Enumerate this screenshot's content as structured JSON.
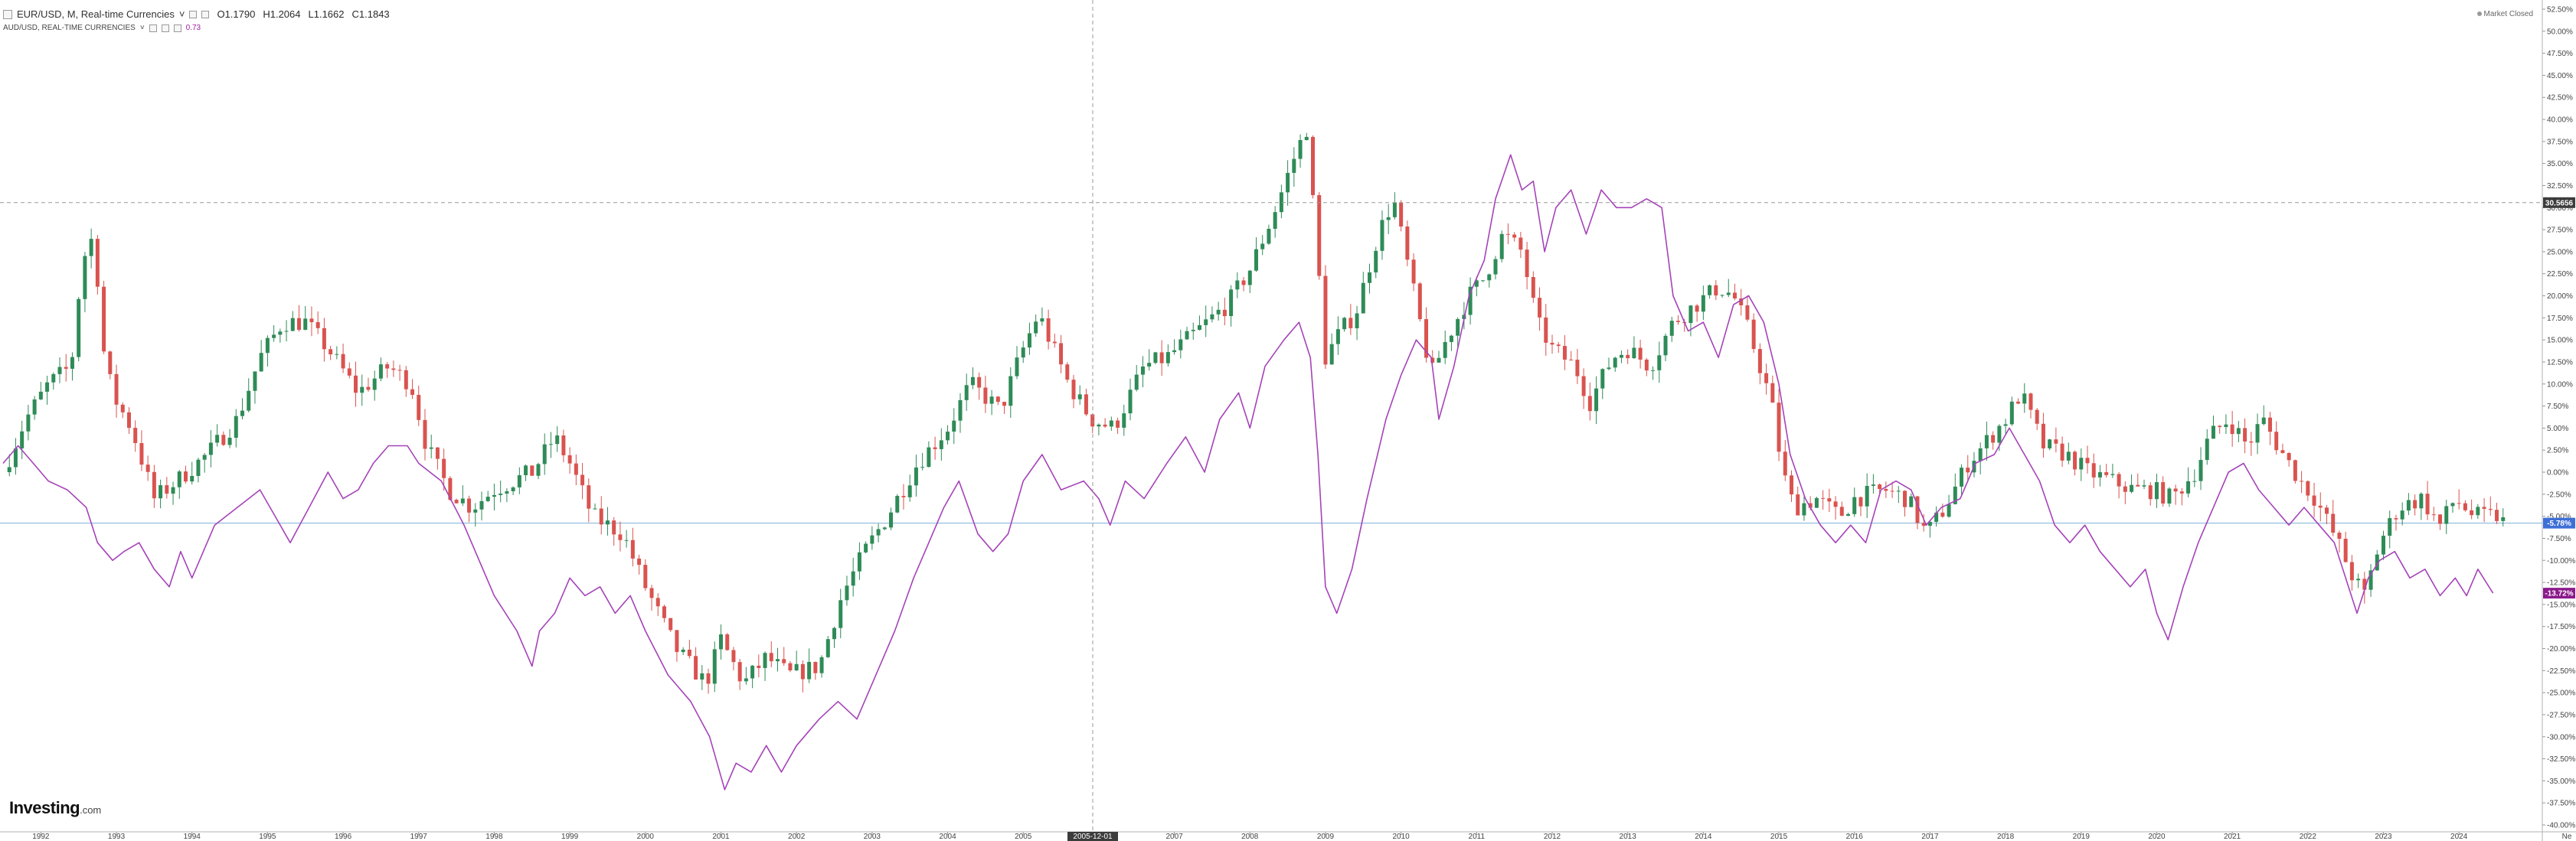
{
  "legend": {
    "main_title": "EUR/USD, M, Real-time Currencies",
    "open": "O1.1790",
    "high": "H1.2064",
    "low": "L1.1662",
    "close": "C1.1843",
    "sub_title": "AUD/USD, REAL-TIME CURRENCIES",
    "sub_value": "0.73"
  },
  "market_status": "Market Closed",
  "logo": {
    "main": "Investing",
    "suffix": ".com"
  },
  "colors": {
    "up": "#26a69a",
    "up_body": "#2e8b57",
    "down": "#d9534f",
    "line": "#a543b8",
    "grid": "#cccccc",
    "crosshair_label": "#3c3c3c",
    "eur_label": "#3d6fd6",
    "aud_label": "#8b1a8b"
  },
  "chart_data": {
    "type": "line",
    "y_axis": {
      "unit": "%",
      "range": [
        -40,
        52.5
      ],
      "tick_labels": [
        "52.50%",
        "50.00%",
        "47.50%",
        "45.00%",
        "42.50%",
        "40.00%",
        "37.50%",
        "35.00%",
        "32.50%",
        "30.00%",
        "27.50%",
        "25.00%",
        "22.50%",
        "20.00%",
        "17.50%",
        "15.00%",
        "12.50%",
        "10.00%",
        "7.50%",
        "5.00%",
        "2.50%",
        "0.00%",
        "-2.50%",
        "-5.00%",
        "-7.50%",
        "-10.00%",
        "-12.50%",
        "-15.00%",
        "-17.50%",
        "-20.00%",
        "-22.50%",
        "-25.00%",
        "-27.50%",
        "-30.00%",
        "-32.50%",
        "-35.00%",
        "-37.50%",
        "-40.00%"
      ]
    },
    "x_axis": {
      "tick_labels": [
        "1992",
        "1993",
        "1994",
        "1995",
        "1996",
        "1997",
        "1998",
        "1999",
        "2000",
        "2001",
        "2002",
        "2003",
        "2004",
        "2005",
        "2005-12-01",
        "2007",
        "2008",
        "2009",
        "2010",
        "2011",
        "2012",
        "2013",
        "2014",
        "2015",
        "2016",
        "2017",
        "2018",
        "2019",
        "2020",
        "2021",
        "2022",
        "2023",
        "2024"
      ],
      "truncated_label": "Ne",
      "range": [
        1991.5,
        2024.9
      ]
    },
    "crosshair": {
      "x_label": "2005-12-01",
      "y_value": 30.5656,
      "y_label": "30.5656"
    },
    "last_value_labels": {
      "eur_usd": "-5.78%",
      "aud_usd": "-13.72%"
    },
    "series": [
      {
        "name": "EUR/USD",
        "kind": "candlestick_percent_change",
        "anchors": [
          [
            1991.5,
            0
          ],
          [
            1991.8,
            6
          ],
          [
            1992.1,
            10
          ],
          [
            1992.4,
            12
          ],
          [
            1992.55,
            24
          ],
          [
            1992.7,
            27
          ],
          [
            1992.85,
            12
          ],
          [
            1993.0,
            8
          ],
          [
            1993.2,
            5
          ],
          [
            1993.5,
            -3
          ],
          [
            1993.8,
            -1
          ],
          [
            1994.2,
            2
          ],
          [
            1994.6,
            6
          ],
          [
            1994.9,
            13
          ],
          [
            1995.2,
            17
          ],
          [
            1995.5,
            17
          ],
          [
            1995.8,
            14
          ],
          [
            1996.2,
            9
          ],
          [
            1996.6,
            12
          ],
          [
            1996.9,
            10
          ],
          [
            1997.1,
            3
          ],
          [
            1997.4,
            -2
          ],
          [
            1997.7,
            -4
          ],
          [
            1998.0,
            -2
          ],
          [
            1998.5,
            0
          ],
          [
            1998.8,
            4
          ],
          [
            1999.0,
            1
          ],
          [
            1999.3,
            -5
          ],
          [
            1999.7,
            -7
          ],
          [
            2000.0,
            -13
          ],
          [
            2000.4,
            -20
          ],
          [
            2000.8,
            -24
          ],
          [
            2001.0,
            -19
          ],
          [
            2001.3,
            -24
          ],
          [
            2001.6,
            -21
          ],
          [
            2001.9,
            -23
          ],
          [
            2002.3,
            -22
          ],
          [
            2002.6,
            -14
          ],
          [
            2002.9,
            -9
          ],
          [
            2003.2,
            -5
          ],
          [
            2003.6,
            1
          ],
          [
            2004.0,
            5
          ],
          [
            2004.3,
            10
          ],
          [
            2004.7,
            7
          ],
          [
            2004.95,
            13
          ],
          [
            2005.2,
            18
          ],
          [
            2005.6,
            10
          ],
          [
            2005.9,
            6
          ],
          [
            2006.2,
            5
          ],
          [
            2006.6,
            12
          ],
          [
            2006.9,
            13
          ],
          [
            2007.3,
            16
          ],
          [
            2007.7,
            19
          ],
          [
            2008.0,
            23
          ],
          [
            2008.3,
            29
          ],
          [
            2008.6,
            36
          ],
          [
            2008.75,
            39
          ],
          [
            2008.85,
            29
          ],
          [
            2009.0,
            13
          ],
          [
            2009.2,
            16
          ],
          [
            2009.4,
            18
          ],
          [
            2009.7,
            27
          ],
          [
            2009.9,
            31
          ],
          [
            2010.1,
            23
          ],
          [
            2010.4,
            11
          ],
          [
            2010.6,
            15
          ],
          [
            2010.9,
            20
          ],
          [
            2011.1,
            22
          ],
          [
            2011.35,
            27
          ],
          [
            2011.6,
            25
          ],
          [
            2011.8,
            17
          ],
          [
            2012.0,
            14
          ],
          [
            2012.3,
            12
          ],
          [
            2012.5,
            8
          ],
          [
            2012.8,
            13
          ],
          [
            2013.0,
            14
          ],
          [
            2013.3,
            12
          ],
          [
            2013.6,
            17
          ],
          [
            2013.9,
            19
          ],
          [
            2014.2,
            21
          ],
          [
            2014.4,
            20
          ],
          [
            2014.6,
            16
          ],
          [
            2014.9,
            8
          ],
          [
            2015.05,
            0
          ],
          [
            2015.2,
            -4
          ],
          [
            2015.5,
            -3
          ],
          [
            2015.8,
            -5
          ],
          [
            2016.0,
            -3
          ],
          [
            2016.4,
            -2
          ],
          [
            2016.7,
            -3
          ],
          [
            2016.95,
            -7
          ],
          [
            2017.2,
            -4
          ],
          [
            2017.5,
            1
          ],
          [
            2017.7,
            3
          ],
          [
            2018.0,
            6
          ],
          [
            2018.2,
            9
          ],
          [
            2018.5,
            3
          ],
          [
            2018.8,
            2
          ],
          [
            2019.1,
            0
          ],
          [
            2019.4,
            -1
          ],
          [
            2019.7,
            -2
          ],
          [
            2019.95,
            -2
          ],
          [
            2020.2,
            -3
          ],
          [
            2020.5,
            0
          ],
          [
            2020.7,
            4
          ],
          [
            2020.95,
            6
          ],
          [
            2021.2,
            3
          ],
          [
            2021.4,
            6
          ],
          [
            2021.6,
            3
          ],
          [
            2021.9,
            -1
          ],
          [
            2022.1,
            -3
          ],
          [
            2022.4,
            -8
          ],
          [
            2022.6,
            -12
          ],
          [
            2022.75,
            -14
          ],
          [
            2022.95,
            -8
          ],
          [
            2023.2,
            -4
          ],
          [
            2023.5,
            -3
          ],
          [
            2023.75,
            -6
          ],
          [
            2023.95,
            -3
          ],
          [
            2024.2,
            -5
          ],
          [
            2024.5,
            -5
          ],
          [
            2024.6,
            -5.78
          ]
        ]
      },
      {
        "name": "AUD/USD",
        "kind": "line_percent_change",
        "points": [
          [
            1991.5,
            1
          ],
          [
            1991.7,
            3
          ],
          [
            1991.9,
            1
          ],
          [
            1992.1,
            -1
          ],
          [
            1992.35,
            -2
          ],
          [
            1992.6,
            -4
          ],
          [
            1992.75,
            -8
          ],
          [
            1992.95,
            -10
          ],
          [
            1993.1,
            -9
          ],
          [
            1993.3,
            -8
          ],
          [
            1993.5,
            -11
          ],
          [
            1993.7,
            -13
          ],
          [
            1993.85,
            -9
          ],
          [
            1994.0,
            -12
          ],
          [
            1994.3,
            -6
          ],
          [
            1994.6,
            -4
          ],
          [
            1994.9,
            -2
          ],
          [
            1995.1,
            -5
          ],
          [
            1995.3,
            -8
          ],
          [
            1995.55,
            -4
          ],
          [
            1995.8,
            0
          ],
          [
            1996.0,
            -3
          ],
          [
            1996.2,
            -2
          ],
          [
            1996.4,
            1
          ],
          [
            1996.6,
            3
          ],
          [
            1996.85,
            3
          ],
          [
            1997.0,
            1
          ],
          [
            1997.3,
            -1
          ],
          [
            1997.6,
            -6
          ],
          [
            1997.8,
            -10
          ],
          [
            1998.0,
            -14
          ],
          [
            1998.3,
            -18
          ],
          [
            1998.5,
            -22
          ],
          [
            1998.6,
            -18
          ],
          [
            1998.8,
            -16
          ],
          [
            1999.0,
            -12
          ],
          [
            1999.2,
            -14
          ],
          [
            1999.4,
            -13
          ],
          [
            1999.6,
            -16
          ],
          [
            1999.8,
            -14
          ],
          [
            2000.0,
            -18
          ],
          [
            2000.3,
            -23
          ],
          [
            2000.6,
            -26
          ],
          [
            2000.85,
            -30
          ],
          [
            2001.05,
            -36
          ],
          [
            2001.2,
            -33
          ],
          [
            2001.4,
            -34
          ],
          [
            2001.6,
            -31
          ],
          [
            2001.8,
            -34
          ],
          [
            2002.0,
            -31
          ],
          [
            2002.3,
            -28
          ],
          [
            2002.55,
            -26
          ],
          [
            2002.8,
            -28
          ],
          [
            2003.0,
            -24
          ],
          [
            2003.3,
            -18
          ],
          [
            2003.55,
            -12
          ],
          [
            2003.75,
            -8
          ],
          [
            2003.95,
            -4
          ],
          [
            2004.15,
            -1
          ],
          [
            2004.4,
            -7
          ],
          [
            2004.6,
            -9
          ],
          [
            2004.8,
            -7
          ],
          [
            2005.0,
            -1
          ],
          [
            2005.25,
            2
          ],
          [
            2005.5,
            -2
          ],
          [
            2005.8,
            -1
          ],
          [
            2006.0,
            -3
          ],
          [
            2006.15,
            -6
          ],
          [
            2006.35,
            -1
          ],
          [
            2006.6,
            -3
          ],
          [
            2006.9,
            1
          ],
          [
            2007.15,
            4
          ],
          [
            2007.4,
            0
          ],
          [
            2007.6,
            6
          ],
          [
            2007.85,
            9
          ],
          [
            2008.0,
            5
          ],
          [
            2008.2,
            12
          ],
          [
            2008.45,
            15
          ],
          [
            2008.65,
            17
          ],
          [
            2008.8,
            13
          ],
          [
            2008.9,
            2
          ],
          [
            2009.0,
            -13
          ],
          [
            2009.15,
            -16
          ],
          [
            2009.35,
            -11
          ],
          [
            2009.55,
            -3
          ],
          [
            2009.8,
            6
          ],
          [
            2010.0,
            11
          ],
          [
            2010.2,
            15
          ],
          [
            2010.4,
            13
          ],
          [
            2010.5,
            6
          ],
          [
            2010.7,
            12
          ],
          [
            2010.9,
            20
          ],
          [
            2011.1,
            24
          ],
          [
            2011.25,
            31
          ],
          [
            2011.45,
            36
          ],
          [
            2011.6,
            32
          ],
          [
            2011.75,
            33
          ],
          [
            2011.9,
            25
          ],
          [
            2012.05,
            30
          ],
          [
            2012.25,
            32
          ],
          [
            2012.45,
            27
          ],
          [
            2012.65,
            32
          ],
          [
            2012.85,
            30
          ],
          [
            2013.05,
            30
          ],
          [
            2013.25,
            31
          ],
          [
            2013.45,
            30
          ],
          [
            2013.6,
            20
          ],
          [
            2013.8,
            16
          ],
          [
            2014.0,
            17
          ],
          [
            2014.2,
            13
          ],
          [
            2014.4,
            19
          ],
          [
            2014.6,
            20
          ],
          [
            2014.8,
            17
          ],
          [
            2015.0,
            10
          ],
          [
            2015.15,
            2
          ],
          [
            2015.35,
            -3
          ],
          [
            2015.55,
            -6
          ],
          [
            2015.75,
            -8
          ],
          [
            2015.95,
            -6
          ],
          [
            2016.15,
            -8
          ],
          [
            2016.35,
            -2
          ],
          [
            2016.55,
            -1
          ],
          [
            2016.75,
            -2
          ],
          [
            2016.95,
            -6
          ],
          [
            2017.15,
            -4
          ],
          [
            2017.4,
            -3
          ],
          [
            2017.6,
            1
          ],
          [
            2017.85,
            2
          ],
          [
            2018.05,
            5
          ],
          [
            2018.25,
            2
          ],
          [
            2018.45,
            -1
          ],
          [
            2018.65,
            -6
          ],
          [
            2018.85,
            -8
          ],
          [
            2019.05,
            -6
          ],
          [
            2019.25,
            -9
          ],
          [
            2019.45,
            -11
          ],
          [
            2019.65,
            -13
          ],
          [
            2019.85,
            -11
          ],
          [
            2020.0,
            -16
          ],
          [
            2020.15,
            -19
          ],
          [
            2020.35,
            -13
          ],
          [
            2020.55,
            -8
          ],
          [
            2020.75,
            -4
          ],
          [
            2020.95,
            0
          ],
          [
            2021.15,
            1
          ],
          [
            2021.35,
            -2
          ],
          [
            2021.55,
            -4
          ],
          [
            2021.75,
            -6
          ],
          [
            2021.95,
            -4
          ],
          [
            2022.15,
            -6
          ],
          [
            2022.35,
            -8
          ],
          [
            2022.5,
            -12
          ],
          [
            2022.65,
            -16
          ],
          [
            2022.8,
            -12
          ],
          [
            2022.95,
            -10
          ],
          [
            2023.15,
            -9
          ],
          [
            2023.35,
            -12
          ],
          [
            2023.55,
            -11
          ],
          [
            2023.75,
            -14
          ],
          [
            2023.95,
            -12
          ],
          [
            2024.1,
            -14
          ],
          [
            2024.25,
            -11
          ],
          [
            2024.45,
            -13.72
          ]
        ]
      }
    ]
  }
}
